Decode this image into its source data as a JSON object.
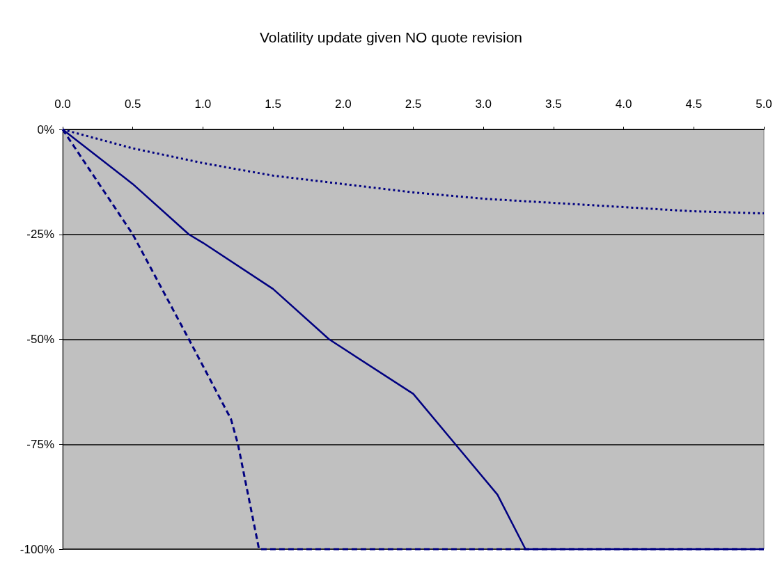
{
  "chart_data": {
    "type": "line",
    "title": "Volatility update given NO quote revision",
    "marker": "none",
    "grid": "y",
    "xlim": [
      0,
      5
    ],
    "xticks": [
      {
        "value": 0,
        "label": "0.0"
      },
      {
        "value": 0.5,
        "label": "0.5"
      },
      {
        "value": 1,
        "label": "1.0"
      },
      {
        "value": 1.5,
        "label": "1.5"
      },
      {
        "value": 2,
        "label": "2.0"
      },
      {
        "value": 2.5,
        "label": "2.5"
      },
      {
        "value": 3,
        "label": "3.0"
      },
      {
        "value": 3.5,
        "label": "3.5"
      },
      {
        "value": 4,
        "label": "4.0"
      },
      {
        "value": 4.5,
        "label": "4.5"
      },
      {
        "value": 5,
        "label": "5.0"
      }
    ],
    "ylim": [
      -100,
      0
    ],
    "yticks": [
      {
        "value": -100,
        "label": "-100%"
      },
      {
        "value": -75,
        "label": "-75%"
      },
      {
        "value": -50,
        "label": "-50%"
      },
      {
        "value": -25,
        "label": "-25%"
      },
      {
        "value": 0,
        "label": "0%"
      }
    ],
    "series": [
      {
        "color": "#000080",
        "line_style": "dotted",
        "x": [
          0,
          0.5,
          1,
          1.5,
          2,
          2.5,
          3,
          3.5,
          4,
          4.5,
          5
        ],
        "values": [
          0,
          -4.5,
          -8,
          -11,
          -13,
          -15,
          -16.5,
          -17.5,
          -18.5,
          -19.5,
          -20
        ]
      },
      {
        "color": "#000080",
        "line_style": "solid",
        "x": [
          0,
          0.5,
          0.9,
          1,
          1.5,
          1.9,
          2.5,
          2.8,
          3.1,
          3.3,
          5
        ],
        "values": [
          0,
          -13,
          -25,
          -27,
          -38,
          -50,
          -63,
          -75,
          -87,
          -100,
          -100
        ]
      },
      {
        "color": "#000080",
        "line_style": "dashed",
        "x": [
          0,
          0.5,
          0.9,
          1.2,
          1.25,
          1.4,
          5
        ],
        "values": [
          0,
          -25,
          -50,
          -69,
          -75,
          -100,
          -100
        ]
      }
    ]
  }
}
